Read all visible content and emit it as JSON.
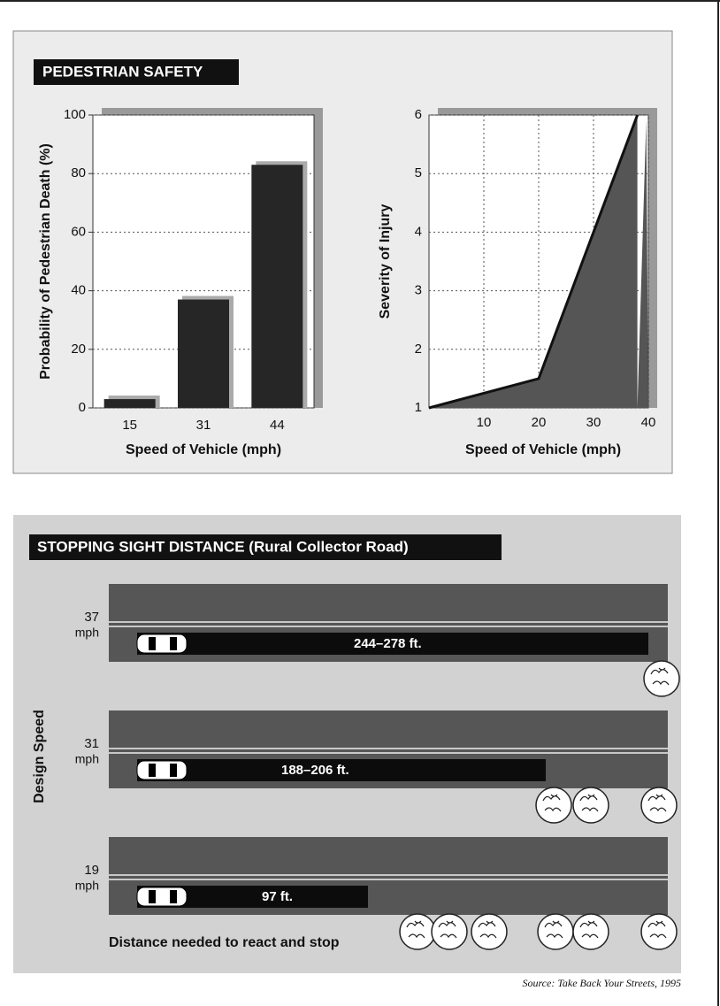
{
  "chart_data": [
    {
      "type": "bar",
      "title": "PEDESTRIAN SAFETY",
      "xlabel": "Speed of Vehicle (mph)",
      "ylabel": "Probability of Pedestrian Death (%)",
      "categories": [
        "15",
        "31",
        "44"
      ],
      "values": [
        3,
        37,
        83
      ],
      "color": "#262626",
      "ylim": [
        0,
        100
      ],
      "yticks": [
        0,
        20,
        40,
        60,
        80,
        100
      ],
      "grid": true
    },
    {
      "type": "line",
      "xlabel": "Speed of Vehicle (mph)",
      "ylabel": "Severity of Injury",
      "x": [
        0,
        20,
        38
      ],
      "values": [
        1,
        1.5,
        6
      ],
      "color": "#3a3a3a",
      "xlim": [
        0,
        40
      ],
      "xticks": [
        10,
        20,
        30,
        40
      ],
      "ylim": [
        1,
        6
      ],
      "yticks": [
        1,
        2,
        3,
        4,
        5,
        6
      ],
      "grid": true
    }
  ],
  "stopping": {
    "title": "STOPPING SIGHT DISTANCE (Rural Collector Road)",
    "axis_label": "Design Speed",
    "roads": [
      {
        "speed": "37",
        "unit": "mph",
        "distance": "244–278 ft."
      },
      {
        "speed": "31",
        "unit": "mph",
        "distance": "188–206 ft."
      },
      {
        "speed": "19",
        "unit": "mph",
        "distance": "97 ft."
      }
    ],
    "caption": "Distance needed to react and stop"
  },
  "source": "Source:  Take Back Your Streets, 1995"
}
